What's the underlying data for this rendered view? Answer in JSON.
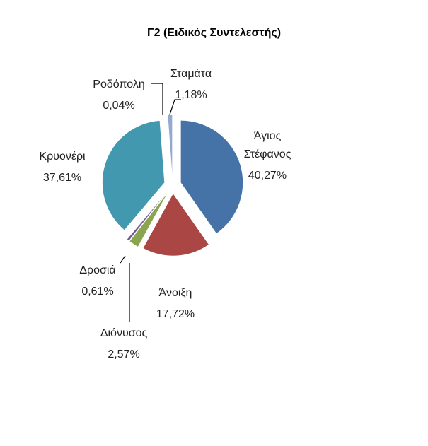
{
  "chart_data": {
    "type": "pie",
    "title": "Γ2 (Ειδικός Συντελεστής)",
    "categories": [
      "Άγιος Στέφανος",
      "Άνοιξη",
      "Διόνυσος",
      "Δροσιά",
      "Κρυονέρι",
      "Ροδόπολη",
      "Σταμάτα"
    ],
    "values": [
      40.27,
      17.72,
      2.57,
      0.61,
      37.61,
      0.04,
      1.18
    ],
    "value_labels": [
      "40,27%",
      "17,72%",
      "2,57%",
      "0,61%",
      "37,61%",
      "0,04%",
      "1,18%"
    ],
    "colors": [
      "#4572a7",
      "#aa4643",
      "#89a54e",
      "#71588f",
      "#4198af",
      "#db843d",
      "#93a9cf"
    ]
  }
}
